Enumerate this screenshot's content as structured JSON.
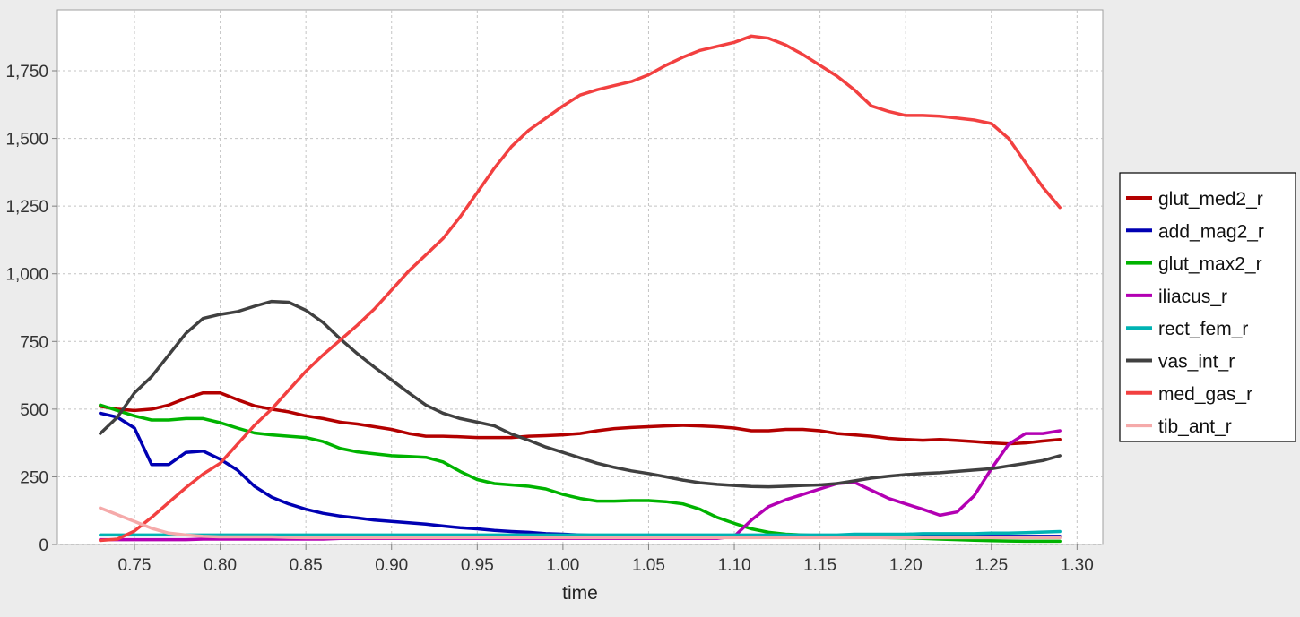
{
  "chart_data": {
    "type": "line",
    "title": "",
    "xlabel": "time",
    "ylabel": "",
    "xlim": [
      0.705,
      1.315
    ],
    "ylim": [
      0,
      1975
    ],
    "grid": true,
    "legend_position": "right",
    "x_ticks": [
      0.75,
      0.8,
      0.85,
      0.9,
      0.95,
      1.0,
      1.05,
      1.1,
      1.15,
      1.2,
      1.25,
      1.3
    ],
    "x_tick_labels": [
      "0.75",
      "0.80",
      "0.85",
      "0.90",
      "0.95",
      "1.00",
      "1.05",
      "1.10",
      "1.15",
      "1.20",
      "1.25",
      "1.30"
    ],
    "y_ticks": [
      0,
      250,
      500,
      750,
      1000,
      1250,
      1500,
      1750
    ],
    "y_tick_labels": [
      "0",
      "250",
      "500",
      "750",
      "1,000",
      "1,250",
      "1,500",
      "1,750"
    ],
    "x": [
      0.73,
      0.74,
      0.75,
      0.76,
      0.77,
      0.78,
      0.79,
      0.8,
      0.81,
      0.82,
      0.83,
      0.84,
      0.85,
      0.86,
      0.87,
      0.88,
      0.89,
      0.9,
      0.91,
      0.92,
      0.93,
      0.94,
      0.95,
      0.96,
      0.97,
      0.98,
      0.99,
      1.0,
      1.01,
      1.02,
      1.03,
      1.04,
      1.05,
      1.06,
      1.07,
      1.08,
      1.09,
      1.1,
      1.11,
      1.12,
      1.13,
      1.14,
      1.15,
      1.16,
      1.17,
      1.18,
      1.19,
      1.2,
      1.21,
      1.22,
      1.23,
      1.24,
      1.25,
      1.26,
      1.27,
      1.28,
      1.29
    ],
    "series": [
      {
        "name": "glut_med2_r",
        "color": "#b30000",
        "values": [
          510,
          500,
          495,
          500,
          515,
          540,
          560,
          560,
          535,
          512,
          500,
          490,
          475,
          465,
          452,
          445,
          435,
          425,
          410,
          400,
          400,
          398,
          395,
          395,
          395,
          400,
          402,
          405,
          410,
          420,
          428,
          432,
          435,
          438,
          440,
          438,
          435,
          430,
          420,
          420,
          425,
          425,
          420,
          410,
          405,
          400,
          392,
          388,
          385,
          388,
          384,
          380,
          375,
          372,
          375,
          382,
          388
        ]
      },
      {
        "name": "add_mag2_r",
        "color": "#0000b3",
        "values": [
          485,
          470,
          430,
          295,
          295,
          340,
          345,
          315,
          275,
          215,
          175,
          150,
          130,
          115,
          105,
          98,
          90,
          85,
          80,
          75,
          68,
          62,
          58,
          52,
          48,
          45,
          40,
          38,
          35,
          33,
          32,
          30,
          30,
          30,
          30,
          30,
          30,
          30,
          30,
          30,
          30,
          30,
          30,
          30,
          30,
          30,
          30,
          30,
          30,
          30,
          30,
          30,
          30,
          30,
          30,
          30,
          30
        ]
      },
      {
        "name": "glut_max2_r",
        "color": "#00b300",
        "values": [
          515,
          495,
          475,
          460,
          460,
          465,
          465,
          450,
          430,
          412,
          405,
          400,
          395,
          380,
          355,
          342,
          335,
          328,
          325,
          322,
          305,
          270,
          240,
          225,
          220,
          215,
          205,
          185,
          170,
          160,
          160,
          162,
          162,
          158,
          150,
          130,
          100,
          78,
          58,
          45,
          38,
          35,
          32,
          30,
          28,
          26,
          25,
          24,
          22,
          20,
          18,
          16,
          14,
          13,
          12,
          12,
          12
        ]
      },
      {
        "name": "iliacus_r",
        "color": "#b300b3",
        "values": [
          18,
          18,
          18,
          18,
          18,
          18,
          20,
          20,
          20,
          20,
          20,
          20,
          20,
          20,
          22,
          22,
          22,
          22,
          22,
          22,
          22,
          22,
          22,
          22,
          22,
          22,
          22,
          22,
          22,
          22,
          22,
          22,
          22,
          22,
          22,
          22,
          22,
          30,
          90,
          140,
          165,
          185,
          205,
          225,
          230,
          200,
          170,
          150,
          130,
          108,
          120,
          180,
          280,
          370,
          410,
          410,
          420
        ]
      },
      {
        "name": "rect_fem_r",
        "color": "#00b3b3",
        "values": [
          35,
          35,
          35,
          35,
          35,
          35,
          35,
          35,
          35,
          35,
          35,
          35,
          35,
          35,
          35,
          35,
          35,
          35,
          35,
          35,
          35,
          35,
          35,
          35,
          35,
          35,
          35,
          35,
          35,
          35,
          35,
          35,
          35,
          35,
          35,
          35,
          35,
          35,
          35,
          35,
          35,
          35,
          35,
          35,
          38,
          38,
          38,
          38,
          40,
          40,
          40,
          40,
          42,
          42,
          44,
          46,
          48
        ]
      },
      {
        "name": "vas_int_r",
        "color": "#404040",
        "values": [
          410,
          470,
          560,
          620,
          700,
          780,
          835,
          850,
          860,
          880,
          898,
          895,
          865,
          820,
          760,
          705,
          655,
          608,
          560,
          515,
          485,
          465,
          452,
          438,
          408,
          385,
          360,
          340,
          320,
          300,
          285,
          272,
          262,
          250,
          238,
          228,
          222,
          218,
          214,
          213,
          215,
          218,
          220,
          225,
          235,
          245,
          252,
          258,
          262,
          265,
          270,
          275,
          280,
          290,
          300,
          310,
          328
        ]
      },
      {
        "name": "med_gas_r",
        "color": "#f24040",
        "values": [
          15,
          20,
          50,
          100,
          155,
          210,
          260,
          300,
          370,
          440,
          500,
          570,
          640,
          700,
          755,
          810,
          870,
          940,
          1010,
          1070,
          1130,
          1210,
          1300,
          1390,
          1470,
          1530,
          1575,
          1620,
          1660,
          1680,
          1695,
          1710,
          1735,
          1770,
          1800,
          1825,
          1840,
          1855,
          1878,
          1870,
          1845,
          1810,
          1770,
          1730,
          1680,
          1620,
          1600,
          1585,
          1585,
          1582,
          1575,
          1568,
          1555,
          1500,
          1410,
          1320,
          1245
        ]
      },
      {
        "name": "tib_ant_r",
        "color": "#f5aaaa",
        "values": [
          135,
          110,
          85,
          60,
          42,
          35,
          30,
          28,
          28,
          28,
          28,
          26,
          25,
          25,
          25,
          25,
          25,
          25,
          25,
          25,
          25,
          25,
          25,
          25,
          25,
          25,
          25,
          25,
          25,
          25,
          25,
          25,
          25,
          25,
          25,
          25,
          25,
          25,
          25,
          25,
          25,
          25,
          25,
          25,
          25,
          25,
          25,
          25,
          25,
          25,
          25,
          25,
          25,
          25,
          25,
          25,
          25
        ]
      }
    ]
  }
}
